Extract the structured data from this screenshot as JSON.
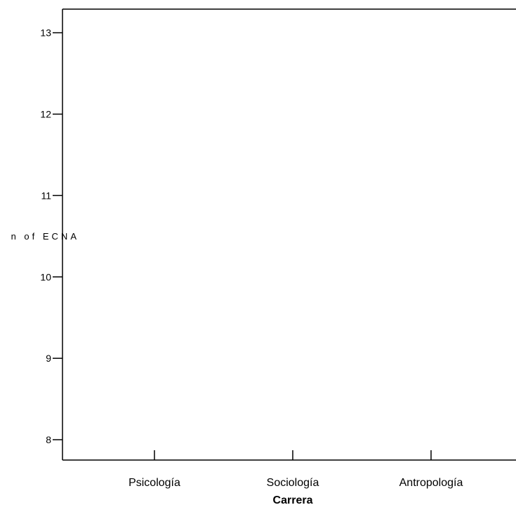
{
  "chart_data": {
    "type": "line",
    "title": "",
    "xlabel": "Carrera",
    "ylabel": "n of ECNA",
    "categories": [
      "Psicología",
      "Sociología",
      "Antropología"
    ],
    "yticks": [
      8,
      9,
      10,
      11,
      12,
      13
    ],
    "ytick_labels": [
      "8",
      "9",
      "10",
      "11",
      "12",
      "13"
    ],
    "ylim": [
      7.75,
      13.29
    ],
    "series": [],
    "grid": false,
    "legend": "none",
    "colors": {
      "axis": "#000000",
      "background": "#ffffff"
    }
  }
}
